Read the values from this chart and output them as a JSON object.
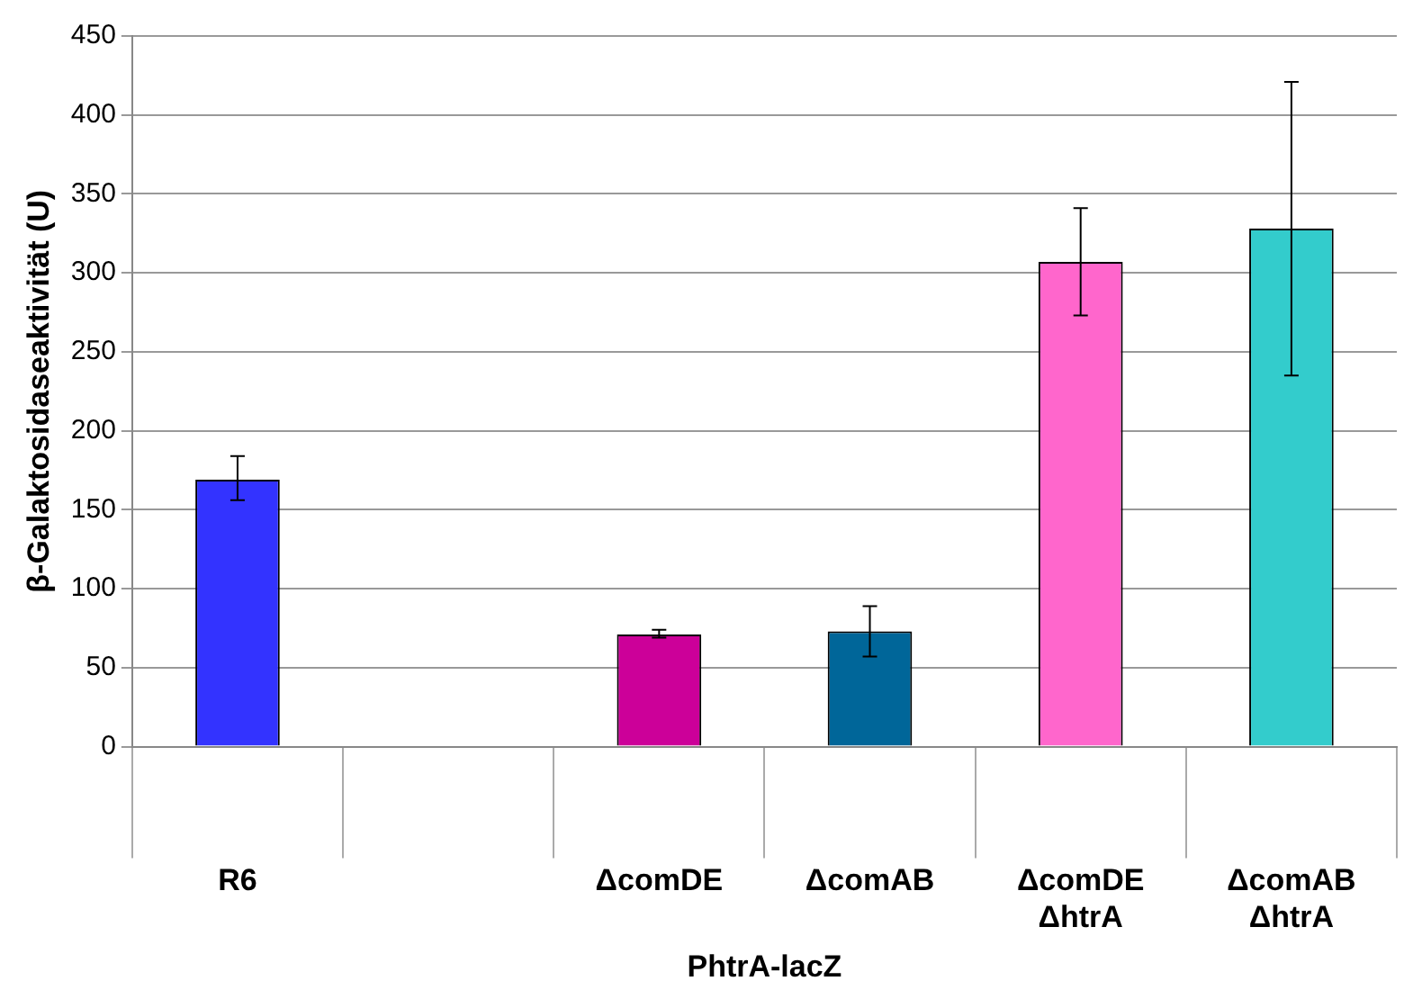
{
  "chart_data": {
    "type": "bar",
    "ylabel": "β-Galaktosidaseaktivität (U)",
    "xlabel": "PhtrA-lacZ",
    "categories": [
      "R6",
      null,
      "ΔcomDE",
      "ΔcomAB",
      "ΔcomDE\nΔhtrA",
      "ΔcomAB\nΔhtrA"
    ],
    "values": [
      169,
      null,
      71,
      73,
      307,
      328
    ],
    "colors": [
      "#3333ff",
      "#cccccc",
      "#cc0099",
      "#006699",
      "#ff66cc",
      "#33cccc"
    ],
    "errors": [
      [
        156,
        184
      ],
      null,
      [
        69,
        74
      ],
      [
        57,
        89
      ],
      [
        273,
        341
      ],
      [
        235,
        421
      ]
    ],
    "ylim": [
      0,
      450
    ],
    "yticks": [
      0,
      50,
      100,
      150,
      200,
      250,
      300,
      350,
      400,
      450
    ],
    "grid": "y",
    "legend": false
  }
}
